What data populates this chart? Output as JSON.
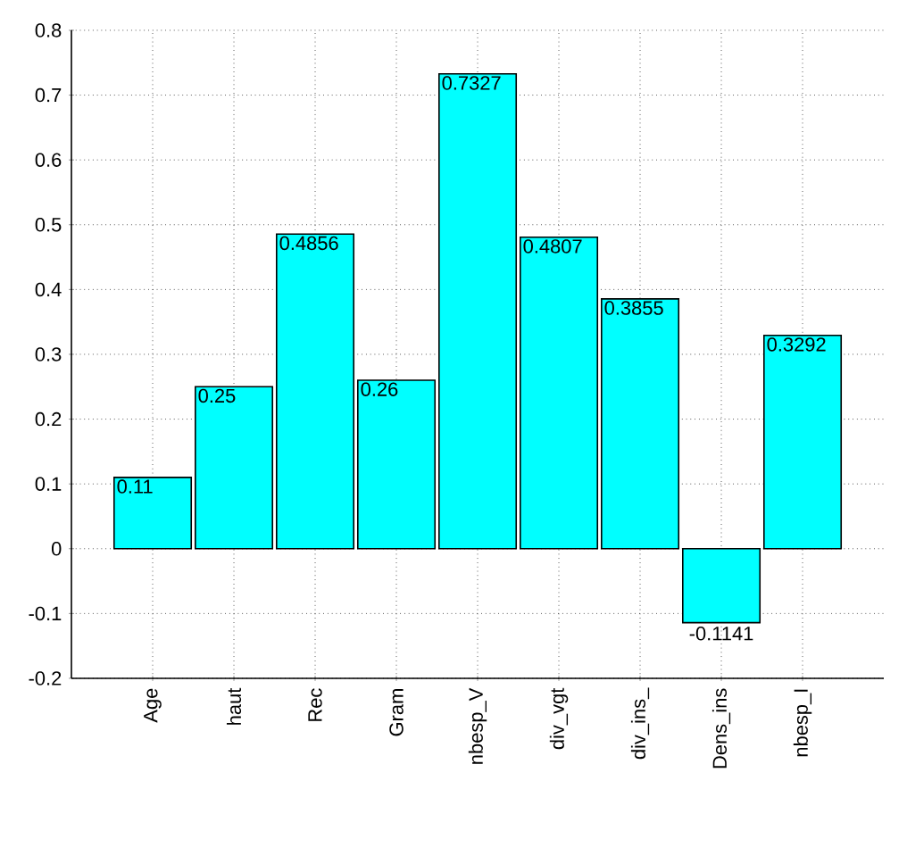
{
  "chart_data": {
    "type": "bar",
    "categories": [
      "Age",
      "haut",
      "Rec",
      "Gram",
      "nbesp_V",
      "div_vgt",
      "div_ins_",
      "Dens_ins",
      "nbesp_I"
    ],
    "values": [
      0.11,
      0.25,
      0.4856,
      0.26,
      0.7327,
      0.4807,
      0.3855,
      -0.1141,
      0.3292
    ],
    "color": "#00ffff",
    "ylim": [
      -0.2,
      0.8
    ],
    "yticks": [
      -0.2,
      -0.1,
      0,
      0.1,
      0.2,
      0.3,
      0.4,
      0.5,
      0.6,
      0.7,
      0.8
    ],
    "grid": true,
    "line_style": "dotted",
    "data_labels": true
  }
}
